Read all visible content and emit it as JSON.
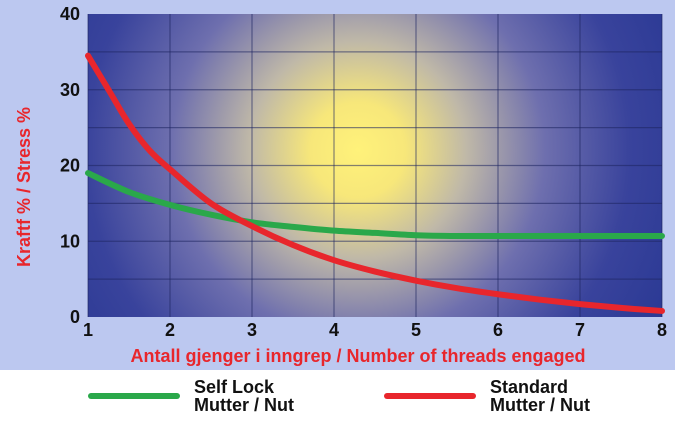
{
  "chart_data": {
    "type": "line",
    "title": "",
    "xlabel": "Antall gjenger i inngrep / Number of threads engaged",
    "ylabel": "Kraftf % / Stress %",
    "xlim": [
      1,
      8
    ],
    "ylim": [
      0,
      40
    ],
    "x_ticks": [
      "1",
      "2",
      "3",
      "4",
      "5",
      "6",
      "7",
      "8"
    ],
    "y_ticks": [
      "0",
      "10",
      "20",
      "30",
      "40"
    ],
    "grid": true,
    "legend_position": "bottom",
    "series": [
      {
        "name": "Self Lock Mutter / Nut",
        "color": "#2aa84a",
        "x": [
          1,
          1.5,
          2,
          2.5,
          3,
          3.5,
          4,
          4.5,
          5,
          5.5,
          6,
          6.5,
          7,
          7.5,
          8
        ],
        "y": [
          19,
          16.5,
          14.8,
          13.5,
          12.5,
          11.9,
          11.4,
          11.1,
          10.8,
          10.7,
          10.7,
          10.7,
          10.7,
          10.7,
          10.7
        ]
      },
      {
        "name": "Standard Mutter / Nut",
        "color": "#e8262c",
        "x": [
          1,
          1.25,
          1.5,
          1.75,
          2,
          2.5,
          3,
          3.5,
          4,
          4.5,
          5,
          5.5,
          6,
          6.5,
          7,
          7.5,
          8
        ],
        "y": [
          34.5,
          30,
          25.5,
          22,
          19.5,
          15,
          12,
          9.5,
          7.5,
          6,
          4.8,
          3.8,
          3,
          2.3,
          1.7,
          1.2,
          0.8
        ]
      }
    ]
  },
  "legend": {
    "self_lock_line1": "Self Lock",
    "self_lock_line2": "Mutter / Nut",
    "standard_line1": "Standard",
    "standard_line2": "Mutter / Nut",
    "self_lock_color": "#2aa84a",
    "standard_color": "#e8262c"
  },
  "colors": {
    "panel_bg": "#bcc8f0",
    "plot_bg_edge": "#2c3a95",
    "plot_bg_glow": "#fff27a",
    "axis_label_red": "#e8262c",
    "tick_text": "#111111"
  }
}
